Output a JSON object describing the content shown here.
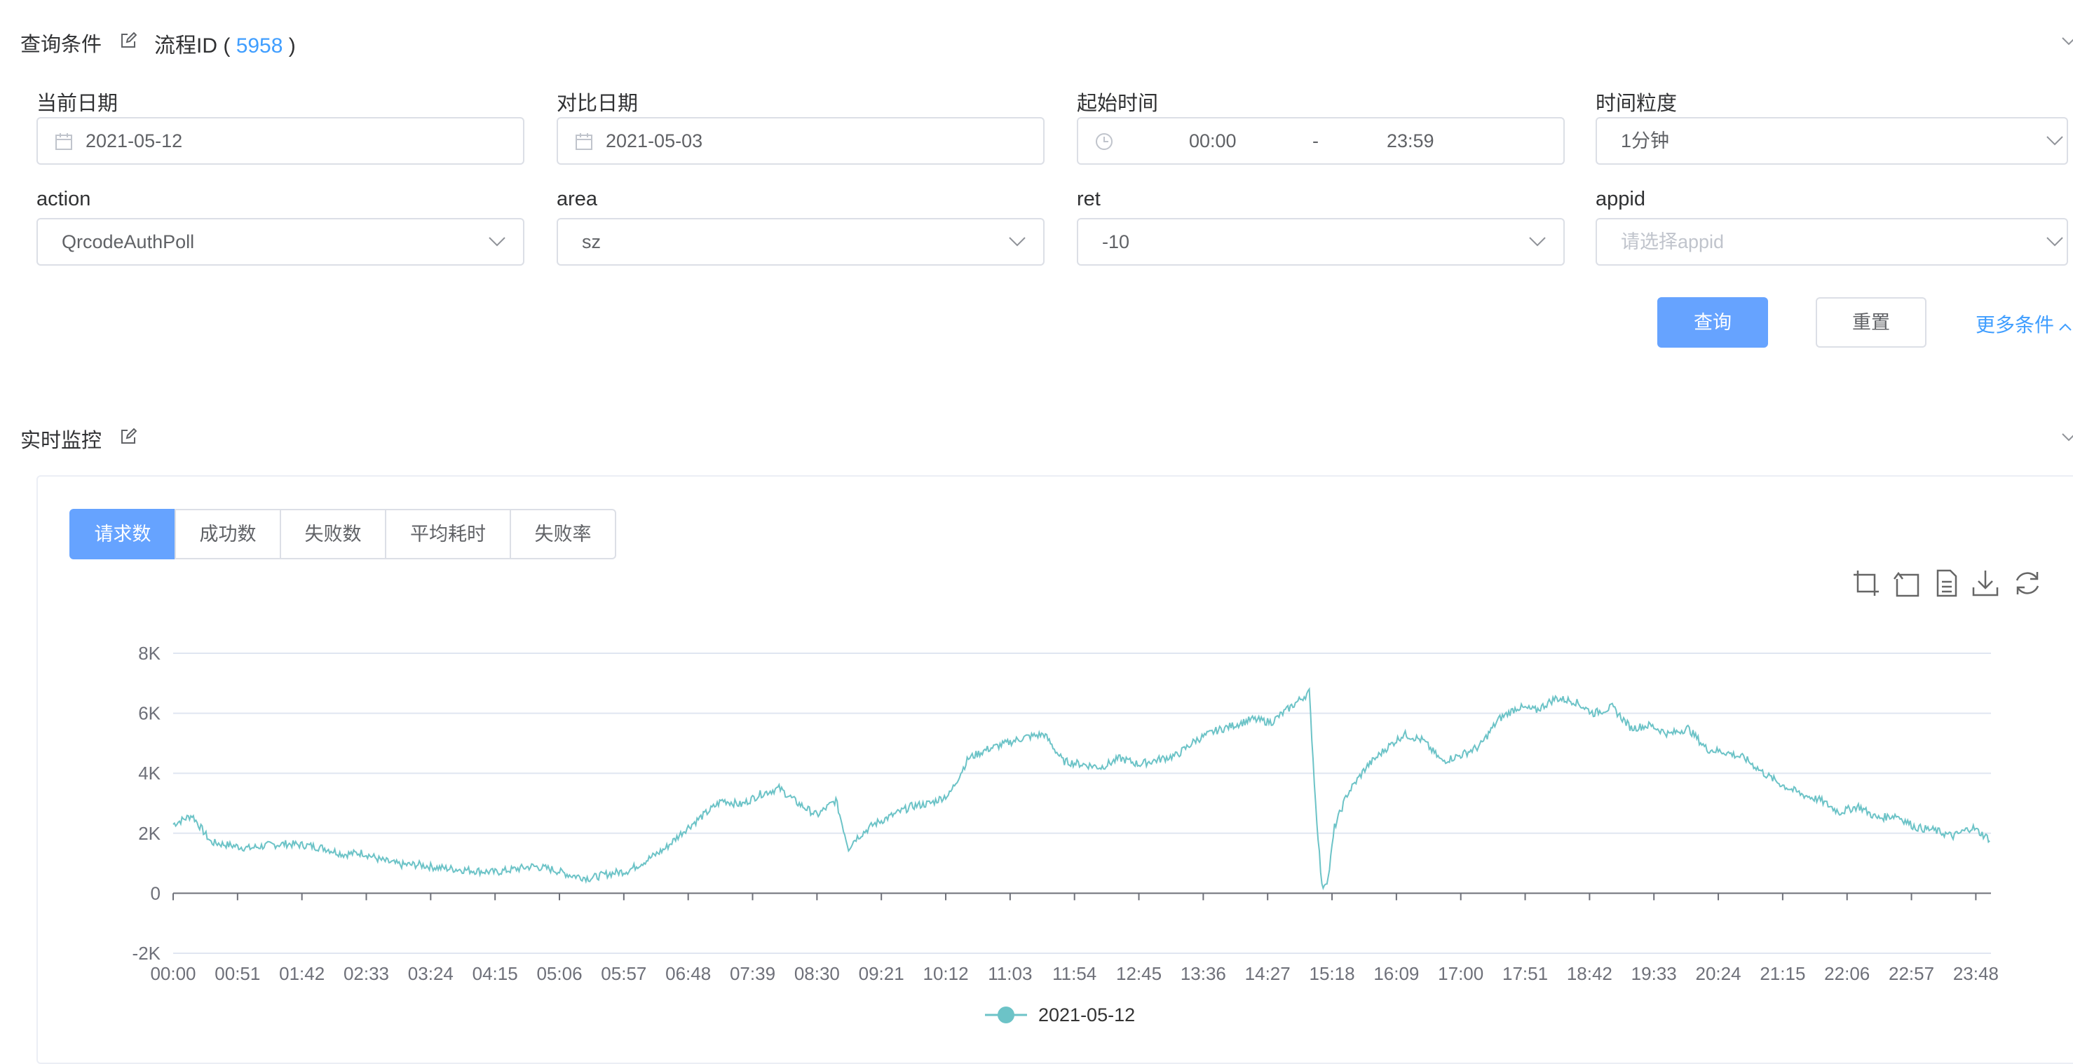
{
  "query_section": {
    "title": "查询条件",
    "flow_label": "流程ID",
    "flow_open": "(",
    "flow_id": "5958",
    "flow_close": ")"
  },
  "fields": {
    "current_date": {
      "label": "当前日期",
      "value": "2021-05-12"
    },
    "compare_date": {
      "label": "对比日期",
      "value": "2021-05-03"
    },
    "start_time": {
      "label": "起始时间",
      "start": "00:00",
      "separator": "-",
      "end": "23:59"
    },
    "granularity": {
      "label": "时间粒度",
      "value": "1分钟"
    },
    "action": {
      "label": "action",
      "value": "QrcodeAuthPoll"
    },
    "area": {
      "label": "area",
      "value": "sz"
    },
    "ret": {
      "label": "ret",
      "value": "-10"
    },
    "appid": {
      "label": "appid",
      "placeholder": "请选择appid"
    }
  },
  "buttons": {
    "query": "查询",
    "reset": "重置",
    "more": "更多条件"
  },
  "monitor_section": {
    "title": "实时监控",
    "tabs": [
      "请求数",
      "成功数",
      "失败数",
      "平均耗时",
      "失败率"
    ],
    "active_tab": 0
  },
  "colors": {
    "accent": "#409eff",
    "primary_button": "#66a3ff",
    "series_line": "#6cc3c7"
  },
  "chart_data": {
    "type": "line",
    "x_ticks": [
      "00:00",
      "00:51",
      "01:42",
      "02:33",
      "03:24",
      "04:15",
      "05:06",
      "05:57",
      "06:48",
      "07:39",
      "08:30",
      "09:21",
      "10:12",
      "11:03",
      "11:54",
      "12:45",
      "13:36",
      "14:27",
      "15:18",
      "16:09",
      "17:00",
      "17:51",
      "18:42",
      "19:33",
      "20:24",
      "21:15",
      "22:06",
      "22:57",
      "23:48"
    ],
    "y_ticks": [
      "8K",
      "6K",
      "4K",
      "2K",
      "0",
      "-2K"
    ],
    "ylim": [
      -2000,
      8000
    ],
    "grid": true,
    "legend_position": "bottom-center",
    "series": [
      {
        "name": "2021-05-12",
        "x": [
          "00:00",
          "00:15",
          "00:30",
          "00:45",
          "01:00",
          "01:15",
          "01:30",
          "01:45",
          "02:00",
          "02:15",
          "02:30",
          "02:45",
          "03:00",
          "03:15",
          "03:30",
          "03:45",
          "04:00",
          "04:15",
          "04:30",
          "04:45",
          "05:00",
          "05:15",
          "05:30",
          "05:45",
          "06:00",
          "06:15",
          "06:30",
          "06:45",
          "07:00",
          "07:15",
          "07:30",
          "07:45",
          "08:00",
          "08:15",
          "08:30",
          "08:45",
          "08:55",
          "09:00",
          "09:15",
          "09:30",
          "09:45",
          "10:00",
          "10:15",
          "10:30",
          "10:45",
          "11:00",
          "11:15",
          "11:30",
          "11:45",
          "12:00",
          "12:15",
          "12:30",
          "12:45",
          "13:00",
          "13:15",
          "13:30",
          "13:45",
          "14:00",
          "14:15",
          "14:30",
          "14:45",
          "15:00",
          "15:05",
          "15:10",
          "15:15",
          "15:20",
          "15:30",
          "15:45",
          "16:00",
          "16:15",
          "16:30",
          "16:45",
          "17:00",
          "17:15",
          "17:30",
          "17:45",
          "18:00",
          "18:15",
          "18:30",
          "18:45",
          "19:00",
          "19:15",
          "19:30",
          "19:45",
          "20:00",
          "20:15",
          "20:30",
          "20:45",
          "21:00",
          "21:15",
          "21:30",
          "21:45",
          "22:00",
          "22:15",
          "22:30",
          "22:45",
          "23:00",
          "23:15",
          "23:30",
          "23:45",
          "23:59"
        ],
        "values": [
          2300,
          2600,
          1700,
          1600,
          1500,
          1600,
          1650,
          1600,
          1500,
          1300,
          1350,
          1100,
          950,
          950,
          850,
          800,
          750,
          700,
          800,
          900,
          800,
          600,
          500,
          650,
          750,
          1100,
          1500,
          2100,
          2600,
          3100,
          2950,
          3300,
          3500,
          3000,
          2600,
          3100,
          1500,
          1800,
          2300,
          2600,
          2900,
          3000,
          3300,
          4500,
          4800,
          5000,
          5200,
          5300,
          4400,
          4300,
          4200,
          4500,
          4300,
          4450,
          4600,
          5100,
          5400,
          5600,
          5800,
          5700,
          6200,
          6700,
          3000,
          200,
          500,
          2200,
          3300,
          4200,
          4800,
          5300,
          5100,
          4400,
          4600,
          4900,
          5800,
          6200,
          6100,
          6500,
          6400,
          6000,
          6200,
          5500,
          5600,
          5300,
          5500,
          4800,
          4700,
          4500,
          4000,
          3600,
          3300,
          3100,
          2700,
          2900,
          2500,
          2600,
          2200,
          2100,
          1900,
          2200,
          1800
        ]
      }
    ]
  }
}
